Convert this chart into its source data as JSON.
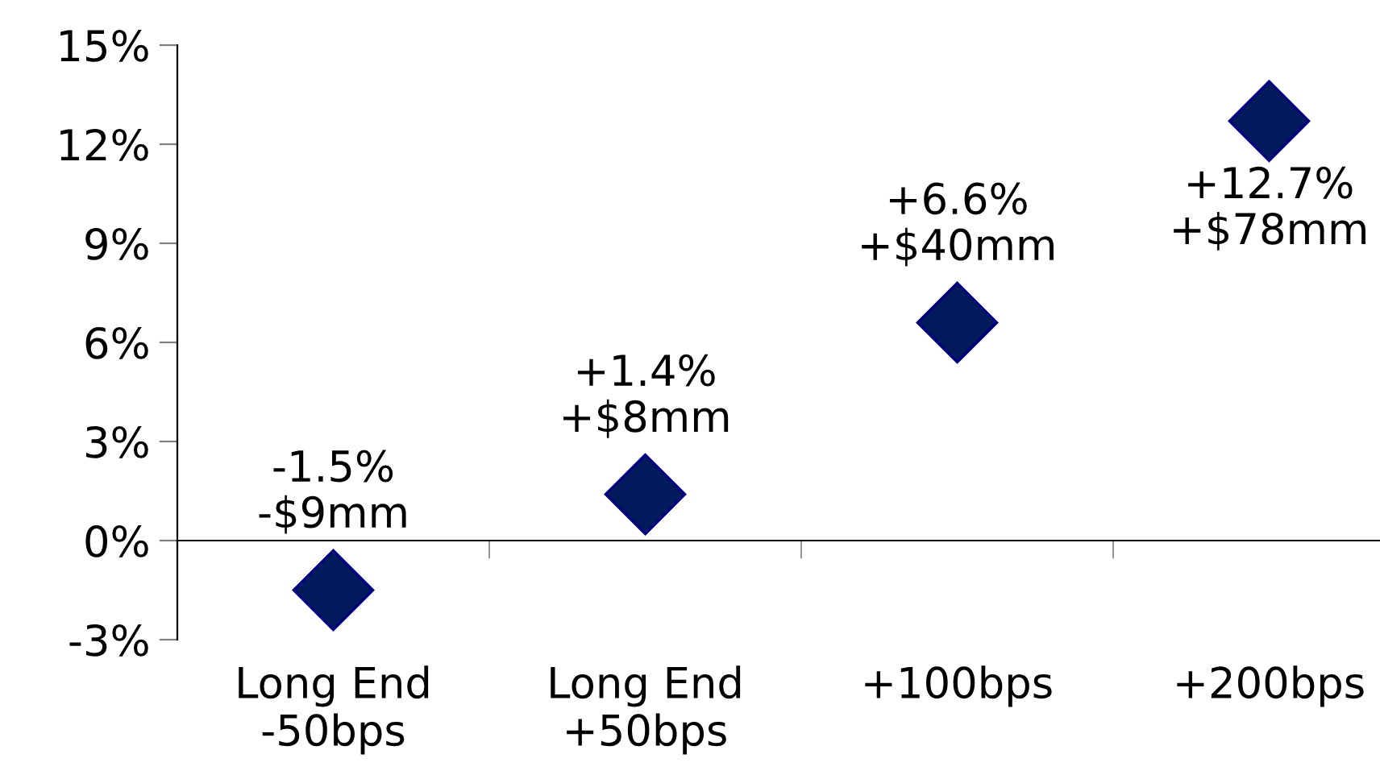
{
  "chart_data": {
    "type": "scatter",
    "categories": [
      "Long End\n-50bps",
      "Long End\n+50bps",
      "+100bps",
      "+200bps"
    ],
    "values": [
      -1.5,
      1.4,
      6.6,
      12.7
    ],
    "value_labels": [
      "-1.5%\n-$9mm",
      "+1.4%\n+$8mm",
      "+6.6%\n+$40mm",
      "+12.7%\n+$78mm"
    ],
    "color": "#001a5c",
    "marker": "diamond",
    "ylim": [
      -3,
      15
    ],
    "yticks": [
      {
        "value": -3,
        "label": "-3%"
      },
      {
        "value": 0,
        "label": "0%"
      },
      {
        "value": 3,
        "label": "3%"
      },
      {
        "value": 6,
        "label": "6%"
      },
      {
        "value": 9,
        "label": "9%"
      },
      {
        "value": 12,
        "label": "12%"
      },
      {
        "value": 15,
        "label": "15%"
      }
    ]
  }
}
